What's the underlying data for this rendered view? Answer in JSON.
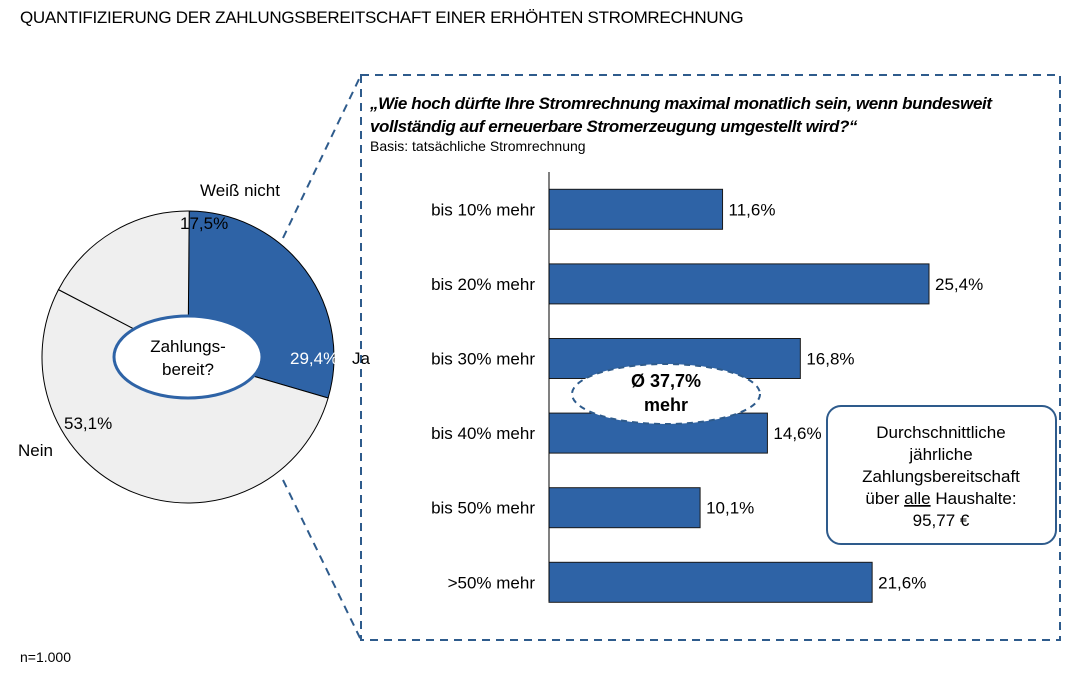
{
  "header": {
    "title": "QUANTIFIZIERUNG DER ZAHLUNGSBEREITSCHAFT EINER ERHÖHTEN STROMRECHNUNG"
  },
  "footnote": "n=1.000",
  "colors": {
    "accent": "#2e63a6",
    "light": "#efefef",
    "dashed": "#2e5b8c"
  },
  "chart_data": [
    {
      "type": "pie",
      "center_label": [
        "Zahlungs-",
        "bereit?"
      ],
      "slices": [
        {
          "label": "Ja",
          "value": 29.4,
          "value_label": "29,4%",
          "color": "#2e63a6"
        },
        {
          "label": "Nein",
          "value": 53.1,
          "value_label": "53,1%",
          "color": "#efefef"
        },
        {
          "label": "Weiß nicht",
          "value": 17.5,
          "value_label": "17,5%",
          "color": "#efefef"
        }
      ]
    },
    {
      "type": "bar",
      "orientation": "horizontal",
      "question": "„Wie hoch dürfte Ihre Stromrechnung maximal monatlich sein, wenn bundesweit",
      "question_line2": "vollständig auf erneuerbare Stromerzeugung umgestellt wird?“",
      "basis": "Basis: tatsächliche Stromrechnung",
      "categories": [
        "bis 10% mehr",
        "bis 20% mehr",
        "bis 30% mehr",
        "bis 40% mehr",
        "bis 50% mehr",
        ">50% mehr"
      ],
      "values": [
        11.6,
        25.4,
        16.8,
        14.6,
        10.1,
        21.6
      ],
      "value_labels": [
        "11,6%",
        "25,4%",
        "16,8%",
        "14,6%",
        "10,1%",
        "21,6%"
      ],
      "xlim": [
        0,
        30
      ],
      "average": {
        "line1": "Ø 37,7%",
        "line2": "mehr"
      },
      "callout": {
        "line1": "Durchschnittliche",
        "line2": "jährliche",
        "line3": "Zahlungsbereitschaft",
        "line4_pre": "über ",
        "line4_underlined": "alle",
        "line4_post": " Haushalte:",
        "line5": "95,77 €"
      }
    }
  ]
}
